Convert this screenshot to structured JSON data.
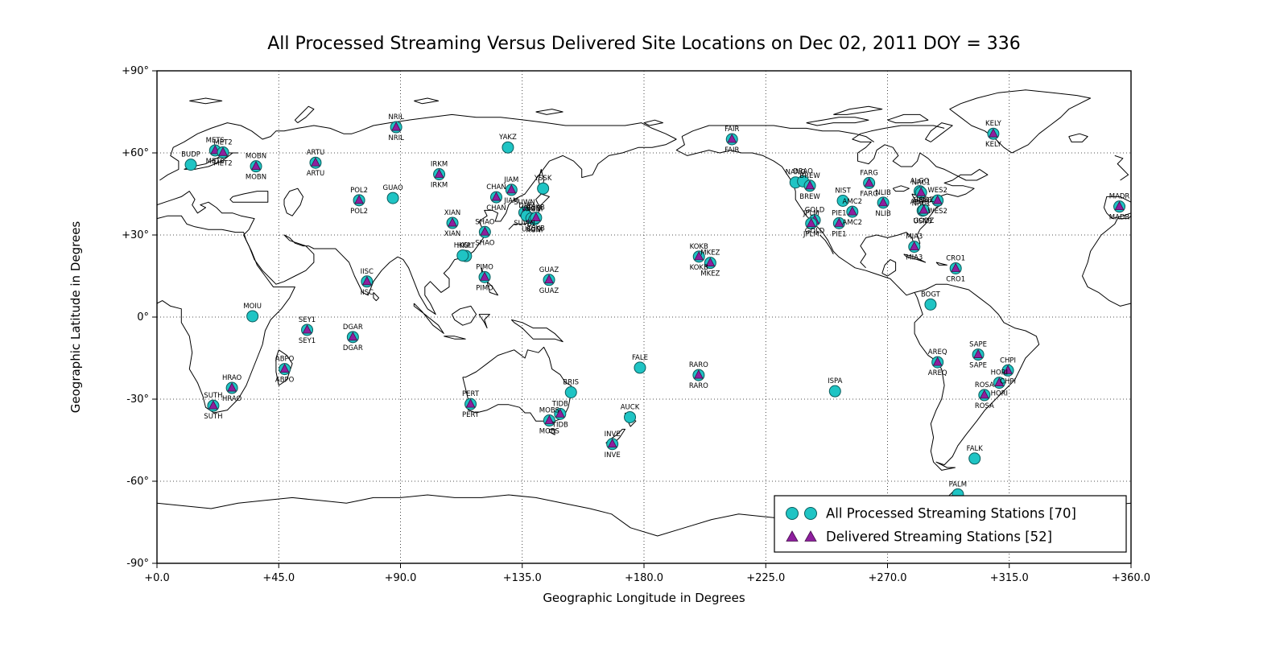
{
  "chart_data": {
    "type": "scatter",
    "title": "All Processed Streaming Versus Delivered Site Locations on Dec 02, 2011 DOY = 336",
    "xlabel": "Geographic Longitude in Degrees",
    "ylabel": "Geographic Latitude in Degrees",
    "xlim": [
      0,
      360
    ],
    "ylim": [
      -90,
      90
    ],
    "grid": "dotted",
    "basemap": "world-coastlines-longitude-0-360",
    "xticks": {
      "values": [
        0,
        45,
        90,
        135,
        180,
        225,
        270,
        315,
        360
      ],
      "labels": [
        "+0.0",
        "+45.0",
        "+90.0",
        "+135.0",
        "+180.0",
        "+225.0",
        "+270.0",
        "+315.0",
        "+360.0"
      ]
    },
    "yticks": {
      "values": [
        90,
        60,
        30,
        0,
        -30,
        -60,
        -90
      ],
      "labels": [
        "+90°",
        "+60°",
        "+30°",
        "0°",
        "-30°",
        "-60°",
        "-90°"
      ]
    },
    "legend": {
      "position": "lower-right",
      "entries": [
        {
          "label": "All Processed Streaming Stations [70]",
          "marker": "circle",
          "count": 70
        },
        {
          "label": "Delivered Streaming Stations [52]",
          "marker": "triangle",
          "count": 52
        }
      ]
    },
    "stations": [
      {
        "id": "BUDP",
        "lon": 12.5,
        "lat": 55.7,
        "delivered": false
      },
      {
        "id": "METS",
        "lon": 21.5,
        "lat": 60.9,
        "delivered": true
      },
      {
        "id": "MET2",
        "lon": 24.4,
        "lat": 60.2,
        "delivered": true
      },
      {
        "id": "MOBN",
        "lon": 36.6,
        "lat": 55.1,
        "delivered": true
      },
      {
        "id": "ARTU",
        "lon": 58.6,
        "lat": 56.4,
        "delivered": true
      },
      {
        "id": "NRIL",
        "lon": 88.4,
        "lat": 69.4,
        "delivered": true
      },
      {
        "id": "YAKZ",
        "lon": 129.7,
        "lat": 62.0,
        "delivered": false
      },
      {
        "id": "POL2",
        "lon": 74.7,
        "lat": 42.7,
        "delivered": true
      },
      {
        "id": "GUAO",
        "lon": 87.2,
        "lat": 43.5,
        "delivered": false
      },
      {
        "id": "IRKM",
        "lon": 104.3,
        "lat": 52.2,
        "delivered": true
      },
      {
        "id": "XIAN",
        "lon": 109.2,
        "lat": 34.4,
        "delivered": true
      },
      {
        "id": "CHAN",
        "lon": 125.4,
        "lat": 43.8,
        "delivered": true
      },
      {
        "id": "JIAM",
        "lon": 131.0,
        "lat": 46.5,
        "delivered": true
      },
      {
        "id": "YSSK",
        "lon": 142.7,
        "lat": 47.0,
        "delivered": false
      },
      {
        "id": "SHAO",
        "lon": 121.2,
        "lat": 31.1,
        "delivered": true
      },
      {
        "id": "SUWN",
        "lon": 135.8,
        "lat": 38.2,
        "delivered": true
      },
      {
        "id": "DAEJ",
        "lon": 136.6,
        "lat": 37.0,
        "delivered": false
      },
      {
        "id": "USUD",
        "lon": 138.4,
        "lat": 36.1,
        "delivered": true
      },
      {
        "id": "KGNI",
        "lon": 139.5,
        "lat": 35.7,
        "delivered": true
      },
      {
        "id": "TSKB",
        "lon": 140.1,
        "lat": 36.3,
        "delivered": true
      },
      {
        "id": "HKPT",
        "lon": 114.2,
        "lat": 22.3,
        "delivered": false
      },
      {
        "id": "HKSL",
        "lon": 113.0,
        "lat": 22.5,
        "delivered": false
      },
      {
        "id": "IISC",
        "lon": 77.6,
        "lat": 13.0,
        "delivered": true
      },
      {
        "id": "PIMO",
        "lon": 121.1,
        "lat": 14.6,
        "delivered": true
      },
      {
        "id": "GUAZ",
        "lon": 144.9,
        "lat": 13.6,
        "delivered": true
      },
      {
        "id": "MOIU",
        "lon": 35.3,
        "lat": 0.3,
        "delivered": false
      },
      {
        "id": "SEY1",
        "lon": 55.5,
        "lat": -4.7,
        "delivered": true
      },
      {
        "id": "DGAR",
        "lon": 72.4,
        "lat": -7.3,
        "delivered": true
      },
      {
        "id": "ABPO",
        "lon": 47.2,
        "lat": -19.0,
        "delivered": true
      },
      {
        "id": "HRAO",
        "lon": 27.7,
        "lat": -25.9,
        "delivered": true
      },
      {
        "id": "SUTH",
        "lon": 20.8,
        "lat": -32.4,
        "delivered": true
      },
      {
        "id": "PERT",
        "lon": 115.9,
        "lat": -31.8,
        "delivered": true
      },
      {
        "id": "BRIS",
        "lon": 153.0,
        "lat": -27.5,
        "delivered": false
      },
      {
        "id": "MOBS",
        "lon": 145.0,
        "lat": -37.8,
        "delivered": true
      },
      {
        "id": "TIDB",
        "lon": 149.0,
        "lat": -35.4,
        "delivered": true
      },
      {
        "id": "AUCK",
        "lon": 174.8,
        "lat": -36.6,
        "delivered": false
      },
      {
        "id": "INVE",
        "lon": 168.3,
        "lat": -46.4,
        "delivered": true
      },
      {
        "id": "FALE",
        "lon": 178.5,
        "lat": -18.5,
        "delivered": false
      },
      {
        "id": "RARO",
        "lon": 200.2,
        "lat": -21.2,
        "delivered": true
      },
      {
        "id": "ISPA",
        "lon": 250.6,
        "lat": -27.1,
        "delivered": false
      },
      {
        "id": "KOKB",
        "lon": 200.3,
        "lat": 22.1,
        "delivered": true
      },
      {
        "id": "MKEZ",
        "lon": 204.5,
        "lat": 19.8,
        "delivered": true
      },
      {
        "id": "FAIR",
        "lon": 212.5,
        "lat": 65.0,
        "delivered": true
      },
      {
        "id": "NANO",
        "lon": 236.0,
        "lat": 49.2,
        "delivered": false
      },
      {
        "id": "DRAO",
        "lon": 238.8,
        "lat": 49.6,
        "delivered": false
      },
      {
        "id": "BREW",
        "lon": 241.3,
        "lat": 48.0,
        "delivered": true
      },
      {
        "id": "GOLD",
        "lon": 243.1,
        "lat": 35.4,
        "delivered": true
      },
      {
        "id": "JPLM",
        "lon": 241.8,
        "lat": 34.2,
        "delivered": true
      },
      {
        "id": "PIE1",
        "lon": 252.1,
        "lat": 34.3,
        "delivered": true
      },
      {
        "id": "NIST",
        "lon": 253.5,
        "lat": 42.5,
        "delivered": false
      },
      {
        "id": "AMC2",
        "lon": 257.0,
        "lat": 38.5,
        "delivered": true
      },
      {
        "id": "FARG",
        "lon": 263.2,
        "lat": 49.0,
        "delivered": true
      },
      {
        "id": "NLIB",
        "lon": 268.4,
        "lat": 41.8,
        "delivered": true
      },
      {
        "id": "ALGO",
        "lon": 281.9,
        "lat": 46.0,
        "delivered": true
      },
      {
        "id": "NRC1",
        "lon": 282.4,
        "lat": 45.5,
        "delivered": true
      },
      {
        "id": "WES2",
        "lon": 288.5,
        "lat": 42.6,
        "delivered": true
      },
      {
        "id": "USN3",
        "lon": 283.0,
        "lat": 38.9,
        "delivered": true
      },
      {
        "id": "GODZ",
        "lon": 283.4,
        "lat": 39.1,
        "delivered": true
      },
      {
        "id": "MIA3",
        "lon": 279.9,
        "lat": 25.7,
        "delivered": true
      },
      {
        "id": "CRO1",
        "lon": 295.2,
        "lat": 17.8,
        "delivered": true
      },
      {
        "id": "BOGT",
        "lon": 285.9,
        "lat": 4.6,
        "delivered": false
      },
      {
        "id": "AREQ",
        "lon": 288.5,
        "lat": -16.5,
        "delivered": true
      },
      {
        "id": "SAPE",
        "lon": 303.5,
        "lat": -13.7,
        "delivered": true
      },
      {
        "id": "CHPI",
        "lon": 314.5,
        "lat": -19.5,
        "delivered": true
      },
      {
        "id": "HORI",
        "lon": 311.3,
        "lat": -24.0,
        "delivered": true
      },
      {
        "id": "ROSA",
        "lon": 305.8,
        "lat": -28.5,
        "delivered": true
      },
      {
        "id": "FALK",
        "lon": 302.2,
        "lat": -51.7,
        "delivered": false
      },
      {
        "id": "PALM",
        "lon": 296.0,
        "lat": -64.8,
        "delivered": false
      },
      {
        "id": "KELY",
        "lon": 309.1,
        "lat": 67.0,
        "delivered": true
      },
      {
        "id": "MADR",
        "lon": 355.7,
        "lat": 40.4,
        "delivered": true
      }
    ]
  },
  "colors": {
    "background": "#FFFFFF",
    "processed_marker": "#1FC4C4",
    "processed_marker_edge": "#0B5B5B",
    "processed_label": "#00ADAD",
    "delivered_marker": "#8E1F9E",
    "delivered_marker_edge": "#45104A",
    "delivered_label": "#CC33CC",
    "grid": "#1A1A1A",
    "coastline": "#000000",
    "frame": "#000000",
    "text": "#000000"
  }
}
